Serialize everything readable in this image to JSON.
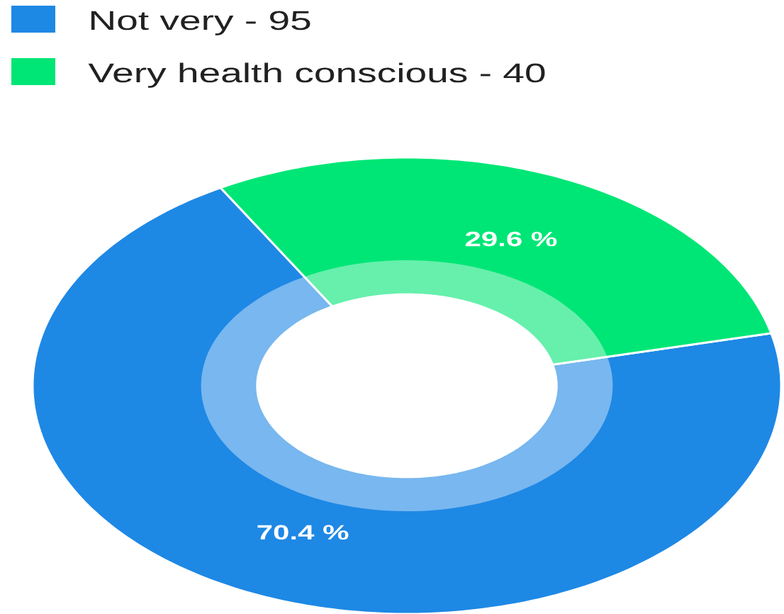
{
  "chart_data": {
    "type": "donut",
    "categories": [
      "Not very - 95",
      "Very health conscious - 40"
    ],
    "values": [
      70.4,
      29.6
    ],
    "colors": [
      "#1e88e5",
      "#00e676"
    ],
    "value_labels": [
      "70.4 %",
      "29.6 %"
    ],
    "legend": "top left"
  }
}
